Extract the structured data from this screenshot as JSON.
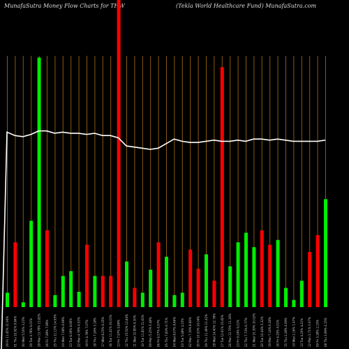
{
  "header": {
    "left_title": "MunafaSutra  Money Flow  Charts for THW",
    "right_title": "(Tekla  World Healthcare   Fund) MunafaSutra.com"
  },
  "colors": {
    "up": "#00ee00",
    "down": "#ff0000",
    "line": "#ffffff",
    "grid": "#8a5a10",
    "background": "#000000"
  },
  "chart_data": {
    "type": "bar",
    "grid": true,
    "categories": [
      "29 Fri 11.45% 11.94%",
      "01 Thu 10.92% 9.84%",
      "30 Wed 5.50% 3.23%",
      "29 Tue 4.78% 6.01%",
      "28 Mon 13.78% 13.82%",
      "26 Fri 7.89% 7.89%",
      "25 Thu 11.13% 14.95%",
      "24 Wed 7.08% 6.99%",
      "23 Tue 6.06% 8.66%",
      "22 Mon 4.78% 4.53%",
      "19 Fri 4.78% 7.07%",
      "18 Thu 7.26% 3.18%",
      "17 Wed 8.25% 6.35%",
      "16 Tue 11.41% 10.01%",
      "13 Fri 7.97% 9.89%",
      "12 Thu 15.53% 12.84%",
      "11 Wed 10.85% 9.30%",
      "10 Tue 11.81% 11.81%",
      "09 Mon 5.25% 5.48%",
      "06 Fri 6.57% 6.57%",
      "05 Thu 7.83% 6.71%",
      "04 Wed 8.07% 8.46%",
      "03 Tue 5.48% 4.15%",
      "02 Mon 7.19% 8.66%",
      "30 Fri 10.03% 10.04%",
      "29 Thu 11.49% 11.42%",
      "28 Wed 14.40% 12.78%",
      "27 Tue 12.61% 15.82%",
      "26 Mon 12.70% 11.16%",
      "23 Fri 9.24% 9.21%",
      "22 Thu 7.73% 6.77%",
      "21 Wed 10.39% 10.02%",
      "20 Tue 10.44% 5.32%",
      "19 Mon 7.14% 6.28%",
      "16 Fri 4.25% 4.01%",
      "15 Thu 2.28% 4.09%",
      "14 Wed 2.16% 1.47%",
      "13 Tue 4.20% 4.21%",
      "12 Mon 3.71% 3.07%",
      "09 Fri 3.28% 2.15%",
      "08 Thu 3.99% 4.15%"
    ],
    "series": [
      {
        "colors": [
          "green",
          "red",
          "green",
          "green",
          "green",
          "red",
          "green",
          "green",
          "green",
          "green",
          "red",
          "green",
          "red",
          "red",
          "red",
          "green",
          "red",
          "green",
          "green",
          "red",
          "green",
          "green",
          "green",
          "red",
          "red",
          "green",
          "red",
          "red",
          "green",
          "green",
          "green",
          "green",
          "red",
          "red",
          "green",
          "green",
          "green",
          "green",
          "red",
          "red",
          "green"
        ],
        "values": [
          30,
          135,
          10,
          180,
          520,
          160,
          25,
          65,
          75,
          32,
          130,
          65,
          65,
          65,
          640,
          95,
          40,
          30,
          78,
          135,
          105,
          25,
          30,
          120,
          80,
          110,
          55,
          500,
          85,
          135,
          155,
          125,
          160,
          130,
          140,
          40,
          15,
          55,
          115,
          150,
          225
        ]
      },
      {
        "values": [
          477,
          474,
          473,
          475,
          478,
          478,
          476,
          477,
          476,
          476,
          475,
          476,
          474,
          474,
          472,
          465,
          464,
          463,
          462,
          463,
          467,
          471,
          469,
          468,
          468,
          469,
          470,
          469,
          469,
          470,
          469,
          471,
          471,
          470,
          471,
          470,
          469,
          469,
          469,
          469,
          470
        ]
      }
    ],
    "ylim": [
      0,
      640
    ]
  }
}
